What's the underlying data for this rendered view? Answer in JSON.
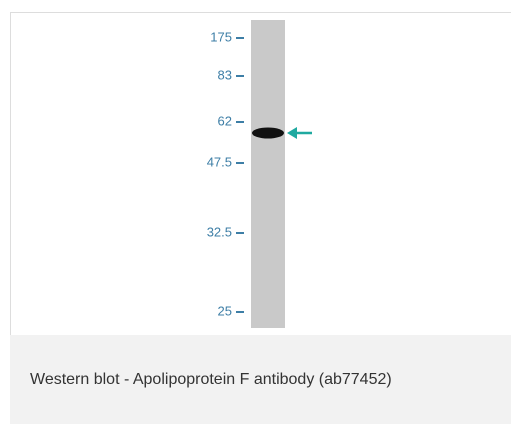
{
  "figure": {
    "markers": [
      "175",
      "83",
      "62",
      "47.5",
      "32.5",
      "25"
    ],
    "caption": "Western blot - Apolipoprotein F antibody (ab77452)"
  }
}
